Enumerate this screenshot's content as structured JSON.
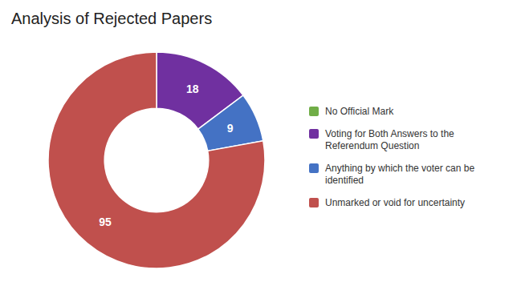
{
  "chart_data": {
    "type": "donut",
    "title": "Analysis of Rejected Papers",
    "categories": [
      "No Official Mark",
      "Voting for Both Answers to the\nReferendum Question",
      "Anything by which the voter can be\nidentified",
      "Unmarked or void for uncertainty"
    ],
    "values": [
      0,
      18,
      9,
      95
    ],
    "colors": [
      "#70ad47",
      "#7030a0",
      "#4472c4",
      "#c0504d"
    ],
    "data_labels": true,
    "legend": "right"
  }
}
